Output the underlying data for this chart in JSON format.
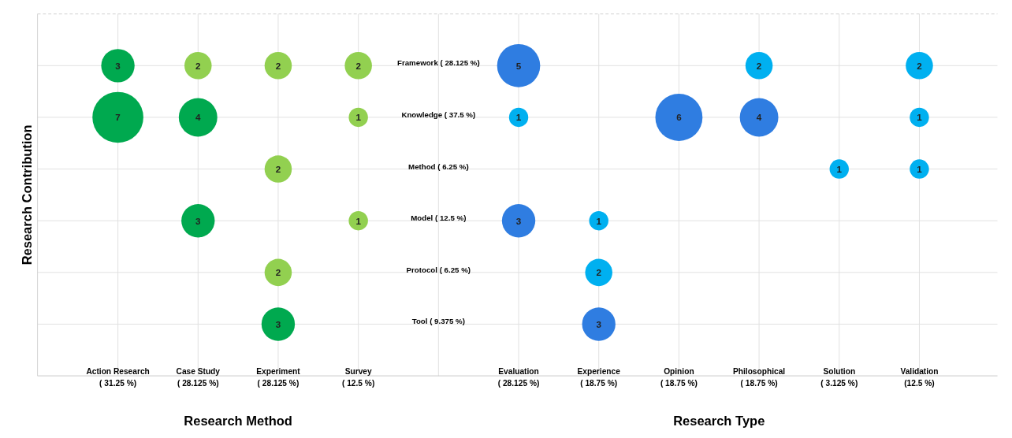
{
  "chart_data": {
    "type": "heatmap",
    "ylabel": "Research Contribution",
    "xlabel": "Research Method",
    "annotations": [
      "Research Type"
    ],
    "categories": [
      "Action Research\n( 31.25 %)",
      "Case Study\n( 28.125 %)",
      "Experiment\n( 28.125 %)",
      "Survey\n( 12.5 %)",
      null,
      "Evaluation\n( 28.125 %)",
      "Experience\n( 18.75 %)",
      "Opinion\n( 18.75 %)",
      "Philosophical\n( 18.75 %)",
      "Solution\n( 3.125 %)",
      "Validation\n(12.5 %)"
    ],
    "y_categories": [
      "Framework ( 28.125 %)",
      "Knowledge ( 37.5 %)",
      "Method ( 6.25 %)",
      "Model  ( 12.5 %)",
      "Protocol ( 6.25 %)",
      "Tool  ( 9.375 %)"
    ],
    "cells": [
      [
        3,
        2,
        2,
        2,
        null,
        5,
        null,
        null,
        2,
        null,
        2
      ],
      [
        7,
        4,
        null,
        1,
        null,
        1,
        null,
        6,
        4,
        null,
        1
      ],
      [
        null,
        null,
        2,
        null,
        null,
        null,
        null,
        null,
        null,
        1,
        1
      ],
      [
        null,
        3,
        null,
        1,
        null,
        3,
        1,
        null,
        null,
        null,
        null
      ],
      [
        null,
        null,
        2,
        null,
        null,
        null,
        2,
        null,
        null,
        null,
        null
      ],
      [
        null,
        null,
        3,
        null,
        null,
        null,
        3,
        null,
        null,
        null,
        null
      ]
    ],
    "colors": [
      [
        "#00a94f",
        "#92d050",
        "#92d050",
        "#92d050",
        null,
        "#2f7de1",
        null,
        null,
        "#00b0f0",
        null,
        "#00b0f0"
      ],
      [
        "#00a94f",
        "#00a94f",
        null,
        "#92d050",
        null,
        "#00b0f0",
        null,
        "#2f7de1",
        "#2f7de1",
        null,
        "#00b0f0"
      ],
      [
        null,
        null,
        "#92d050",
        null,
        null,
        null,
        null,
        null,
        null,
        "#00b0f0",
        "#00b0f0"
      ],
      [
        null,
        "#00a94f",
        null,
        "#92d050",
        null,
        "#2f7de1",
        "#00b0f0",
        null,
        null,
        null,
        null
      ],
      [
        null,
        null,
        "#92d050",
        null,
        null,
        null,
        "#00b0f0",
        null,
        null,
        null,
        null
      ],
      [
        null,
        null,
        "#00a94f",
        null,
        null,
        null,
        "#2f7de1",
        null,
        null,
        null,
        null
      ]
    ],
    "grid": true,
    "data_labels": true
  }
}
